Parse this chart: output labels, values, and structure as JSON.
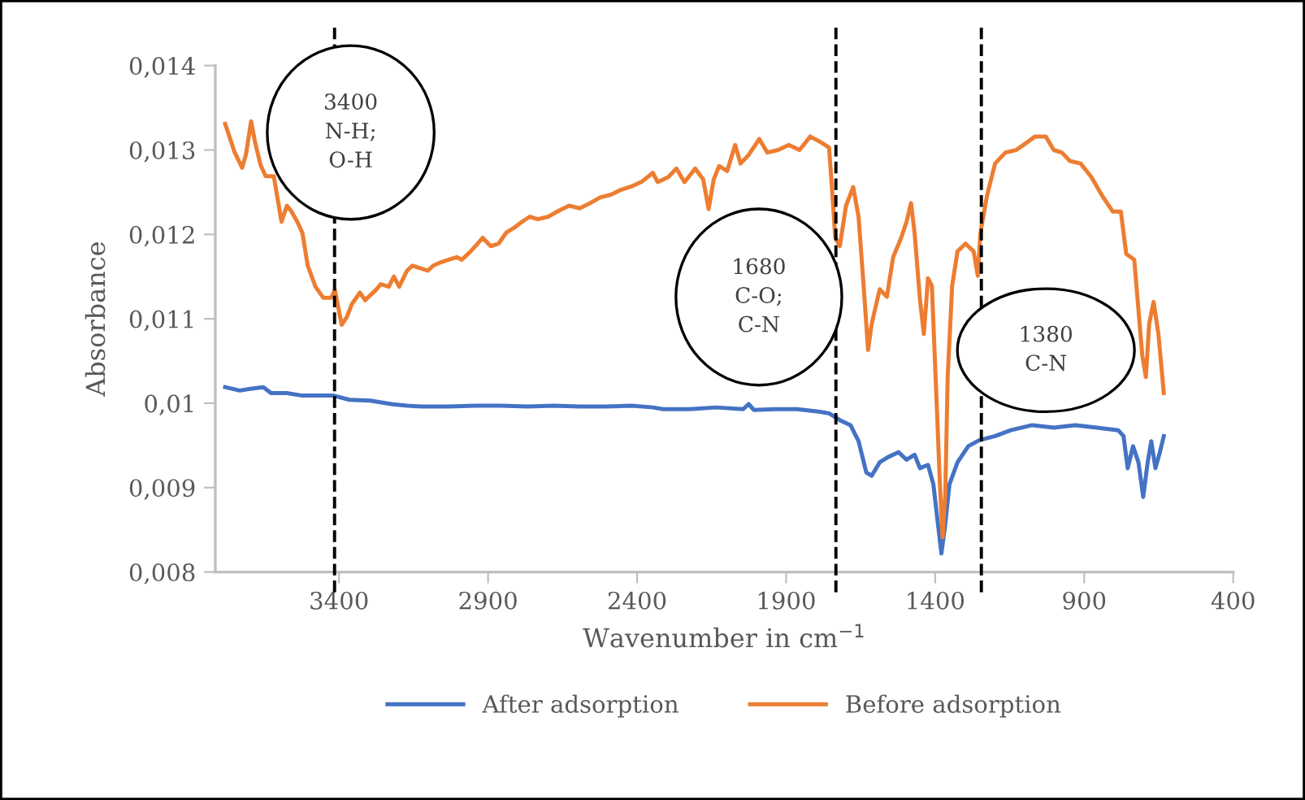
{
  "chart_data": {
    "type": "line",
    "xlabel": "Wavenumber in cm$^{−1}$",
    "ylabel": "Absorbance",
    "xlim": [
      3815,
      400
    ],
    "xticks": [
      3400,
      2900,
      2400,
      1900,
      1400,
      900,
      400
    ],
    "ylim": [
      0.008,
      0.014
    ],
    "yticks": [
      {
        "value": 0.008,
        "label": "0,008"
      },
      {
        "value": 0.009,
        "label": "0,009"
      },
      {
        "value": 0.01,
        "label": "0,01"
      },
      {
        "value": 0.011,
        "label": "0,011"
      },
      {
        "value": 0.012,
        "label": "0,012"
      },
      {
        "value": 0.013,
        "label": "0,013"
      },
      {
        "value": 0.014,
        "label": "0,014"
      }
    ],
    "grid": false,
    "legend": "bottom",
    "line_style": "solid",
    "marker": "none",
    "ref_lines": [
      {
        "axis": "x",
        "value": 3415,
        "label": "3400\nN-H;\nO-H",
        "color": "#000000",
        "line_style": "dashed"
      },
      {
        "axis": "x",
        "value": 1733,
        "label": "1680\nC-O;\nC-N",
        "color": "#000000",
        "line_style": "dashed"
      },
      {
        "axis": "x",
        "value": 1245,
        "label": "1380\nC-N",
        "color": "#000000",
        "line_style": "dashed"
      }
    ],
    "series": [
      {
        "name": "After adsorption",
        "color": "#4472c4",
        "x": [
          3782,
          3733,
          3698,
          3654,
          3628,
          3575,
          3523,
          3470,
          3418,
          3365,
          3295,
          3225,
          3172,
          3119,
          3032,
          2944,
          2856,
          2768,
          2681,
          2593,
          2505,
          2418,
          2347,
          2313,
          2223,
          2134,
          2044,
          2026,
          2008,
          1936,
          1864,
          1792,
          1756,
          1720,
          1684,
          1657,
          1631,
          1613,
          1586,
          1559,
          1523,
          1496,
          1469,
          1451,
          1424,
          1406,
          1392,
          1379,
          1367,
          1352,
          1325,
          1289,
          1253,
          1199,
          1146,
          1074,
          1002,
          930,
          858,
          786,
          768,
          754,
          736,
          718,
          702,
          687,
          675,
          661,
          646,
          633
        ],
        "values": [
          0.01019,
          0.01015,
          0.01017,
          0.01019,
          0.01012,
          0.01012,
          0.01009,
          0.01009,
          0.01009,
          0.01004,
          0.01003,
          0.00999,
          0.00997,
          0.00996,
          0.00996,
          0.00997,
          0.00997,
          0.00996,
          0.00997,
          0.00996,
          0.00996,
          0.00997,
          0.00995,
          0.00993,
          0.00993,
          0.00995,
          0.00993,
          0.00999,
          0.00992,
          0.00993,
          0.00993,
          0.0099,
          0.00988,
          0.0098,
          0.00974,
          0.00955,
          0.00918,
          0.00914,
          0.0093,
          0.00936,
          0.00942,
          0.00933,
          0.00939,
          0.00923,
          0.00927,
          0.00904,
          0.00861,
          0.00822,
          0.00854,
          0.00904,
          0.0093,
          0.00949,
          0.00956,
          0.00961,
          0.00968,
          0.00974,
          0.00971,
          0.00974,
          0.00971,
          0.00968,
          0.00961,
          0.00923,
          0.00949,
          0.0093,
          0.00889,
          0.0093,
          0.00955,
          0.00923,
          0.00942,
          0.00961
        ]
      },
      {
        "name": "Before adsorption",
        "color": "#ed7d31",
        "x": [
          3782,
          3751,
          3725,
          3712,
          3695,
          3681,
          3663,
          3646,
          3619,
          3602,
          3593,
          3575,
          3561,
          3540,
          3523,
          3505,
          3479,
          3453,
          3426,
          3414,
          3391,
          3374,
          3356,
          3330,
          3312,
          3295,
          3277,
          3260,
          3233,
          3216,
          3198,
          3172,
          3154,
          3128,
          3102,
          3084,
          3058,
          3032,
          3005,
          2988,
          2961,
          2935,
          2918,
          2891,
          2865,
          2839,
          2812,
          2786,
          2760,
          2733,
          2698,
          2663,
          2628,
          2593,
          2558,
          2523,
          2488,
          2453,
          2418,
          2382,
          2347,
          2331,
          2295,
          2268,
          2241,
          2205,
          2178,
          2160,
          2143,
          2125,
          2098,
          2071,
          2053,
          2026,
          1990,
          1963,
          1927,
          1891,
          1855,
          1819,
          1783,
          1756,
          1747,
          1735,
          1720,
          1699,
          1675,
          1657,
          1640,
          1625,
          1613,
          1586,
          1562,
          1541,
          1514,
          1496,
          1481,
          1469,
          1451,
          1438,
          1424,
          1411,
          1397,
          1384,
          1375,
          1366,
          1358,
          1343,
          1325,
          1298,
          1271,
          1257,
          1248,
          1226,
          1199,
          1164,
          1128,
          1092,
          1065,
          1029,
          1002,
          975,
          948,
          912,
          876,
          840,
          804,
          777,
          759,
          732,
          705,
          693,
          682,
          667,
          651,
          633
        ],
        "values": [
          0.01331,
          0.01298,
          0.01279,
          0.01295,
          0.01334,
          0.01308,
          0.01282,
          0.01269,
          0.01269,
          0.01234,
          0.01215,
          0.01234,
          0.01228,
          0.01215,
          0.01202,
          0.01163,
          0.01138,
          0.01125,
          0.01125,
          0.01134,
          0.01093,
          0.01102,
          0.01118,
          0.01131,
          0.01122,
          0.01128,
          0.01134,
          0.01141,
          0.01138,
          0.0115,
          0.01138,
          0.01157,
          0.01163,
          0.0116,
          0.01157,
          0.01163,
          0.01167,
          0.0117,
          0.01173,
          0.0117,
          0.01179,
          0.01189,
          0.01196,
          0.01186,
          0.01189,
          0.01202,
          0.01208,
          0.01215,
          0.01221,
          0.01218,
          0.01221,
          0.01228,
          0.01234,
          0.01231,
          0.01237,
          0.01244,
          0.01247,
          0.01253,
          0.01257,
          0.01263,
          0.01273,
          0.01262,
          0.01268,
          0.01278,
          0.01262,
          0.01278,
          0.01265,
          0.0123,
          0.01265,
          0.01281,
          0.01275,
          0.01306,
          0.01284,
          0.01294,
          0.01313,
          0.01297,
          0.013,
          0.01306,
          0.013,
          0.01316,
          0.01309,
          0.01303,
          0.01259,
          0.01196,
          0.01186,
          0.01234,
          0.01256,
          0.01221,
          0.01139,
          0.01063,
          0.01094,
          0.01135,
          0.01126,
          0.01173,
          0.01196,
          0.01215,
          0.01237,
          0.01202,
          0.01123,
          0.01082,
          0.01148,
          0.01139,
          0.01018,
          0.00904,
          0.00841,
          0.00892,
          0.01031,
          0.01139,
          0.0118,
          0.01189,
          0.0118,
          0.01151,
          0.01202,
          0.01246,
          0.01284,
          0.01297,
          0.013,
          0.01309,
          0.01316,
          0.01316,
          0.013,
          0.01297,
          0.01287,
          0.01284,
          0.01268,
          0.01246,
          0.01227,
          0.01227,
          0.01177,
          0.0117,
          0.01056,
          0.01031,
          0.01094,
          0.0112,
          0.01082,
          0.01012
        ]
      }
    ]
  }
}
